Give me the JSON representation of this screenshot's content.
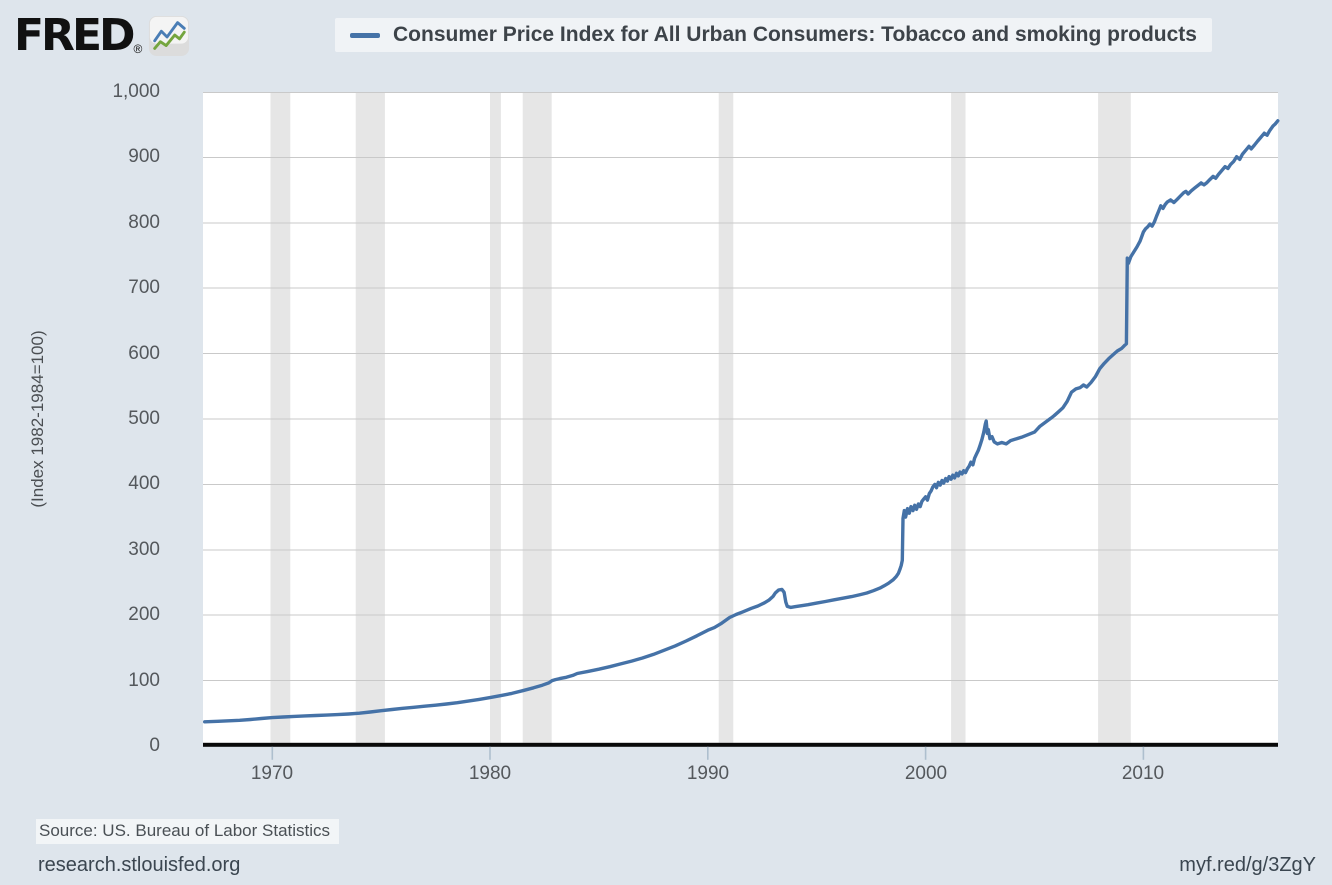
{
  "header": {
    "logo_text": "FRED",
    "registered": "®"
  },
  "footer": {
    "source": "Source: US. Bureau of Labor Statistics",
    "site_link": "research.stlouisfed.org",
    "short_link": "myf.red/g/3ZgY"
  },
  "chart_data": {
    "type": "line",
    "title": "Consumer Price Index for All Urban Consumers: Tobacco and smoking products",
    "xlabel": "",
    "ylabel": "(Index 1982-1984=100)",
    "x_domain": [
      1966.82,
      2016.18
    ],
    "y_domain": [
      0,
      1000
    ],
    "grid": true,
    "legend_position": "top-center",
    "line_color": "#4572a7",
    "recession_color": "#e6e6e6",
    "grid_color": "#c9c9c9",
    "axis_color": "#0a0a0a",
    "tick_mark_color": "#aebfce",
    "x_ticks": [
      {
        "label": "1970",
        "value": 1970
      },
      {
        "label": "1980",
        "value": 1980
      },
      {
        "label": "1990",
        "value": 1990
      },
      {
        "label": "2000",
        "value": 2000
      },
      {
        "label": "2010",
        "value": 2010
      }
    ],
    "y_ticks": [
      {
        "label": "0",
        "value": 0
      },
      {
        "label": "100",
        "value": 100
      },
      {
        "label": "200",
        "value": 200
      },
      {
        "label": "300",
        "value": 300
      },
      {
        "label": "400",
        "value": 400
      },
      {
        "label": "500",
        "value": 500
      },
      {
        "label": "600",
        "value": 600
      },
      {
        "label": "700",
        "value": 700
      },
      {
        "label": "800",
        "value": 800
      },
      {
        "label": "900",
        "value": 900
      },
      {
        "label": "1,000",
        "value": 1000
      }
    ],
    "recessions": [
      [
        1969.92,
        1970.83
      ],
      [
        1973.83,
        1975.17
      ],
      [
        1980.0,
        1980.5
      ],
      [
        1981.5,
        1982.83
      ],
      [
        1990.5,
        1991.17
      ],
      [
        2001.17,
        2001.83
      ],
      [
        2007.92,
        2009.42
      ]
    ],
    "series_name": "Consumer Price Index for All Urban Consumers: Tobacco and smoking products",
    "series": [
      [
        1966.9,
        37
      ],
      [
        1967.2,
        37.3
      ],
      [
        1967.5,
        37.8
      ],
      [
        1968,
        38.6
      ],
      [
        1968.5,
        39.3
      ],
      [
        1969,
        40.5
      ],
      [
        1969.5,
        42
      ],
      [
        1970,
        43.5
      ],
      [
        1970.5,
        44.3
      ],
      [
        1971,
        45.2
      ],
      [
        1971.5,
        46
      ],
      [
        1972,
        46.6
      ],
      [
        1972.5,
        47.2
      ],
      [
        1973,
        48
      ],
      [
        1973.5,
        49
      ],
      [
        1974,
        50.2
      ],
      [
        1974.5,
        52
      ],
      [
        1975,
        54
      ],
      [
        1975.5,
        55.8
      ],
      [
        1976,
        57.6
      ],
      [
        1976.5,
        59.2
      ],
      [
        1977,
        60.8
      ],
      [
        1977.5,
        62.4
      ],
      [
        1978,
        64.2
      ],
      [
        1978.5,
        66.2
      ],
      [
        1979,
        68.6
      ],
      [
        1979.5,
        71.2
      ],
      [
        1980,
        74
      ],
      [
        1980.5,
        77
      ],
      [
        1981,
        80.5
      ],
      [
        1981.5,
        84.5
      ],
      [
        1982,
        89
      ],
      [
        1982.4,
        93
      ],
      [
        1982.7,
        96.5
      ],
      [
        1982.85,
        100
      ],
      [
        1983,
        101.5
      ],
      [
        1983.2,
        103
      ],
      [
        1983.5,
        105
      ],
      [
        1983.8,
        108
      ],
      [
        1984,
        110.8
      ],
      [
        1984.5,
        114
      ],
      [
        1985,
        117.5
      ],
      [
        1985.5,
        121.3
      ],
      [
        1986,
        125.5
      ],
      [
        1986.5,
        129.8
      ],
      [
        1987,
        134.5
      ],
      [
        1987.5,
        140
      ],
      [
        1988,
        146.5
      ],
      [
        1988.5,
        153
      ],
      [
        1989,
        160.5
      ],
      [
        1989.5,
        168.5
      ],
      [
        1990,
        177
      ],
      [
        1990.3,
        181
      ],
      [
        1990.6,
        187
      ],
      [
        1991,
        196.5
      ],
      [
        1991.3,
        201
      ],
      [
        1991.6,
        205
      ],
      [
        1992,
        210.5
      ],
      [
        1992.3,
        214
      ],
      [
        1992.6,
        219
      ],
      [
        1992.8,
        223
      ],
      [
        1993,
        229
      ],
      [
        1993.1,
        234
      ],
      [
        1993.25,
        238.5
      ],
      [
        1993.4,
        239.5
      ],
      [
        1993.5,
        235
      ],
      [
        1993.58,
        220
      ],
      [
        1993.65,
        213.5
      ],
      [
        1993.8,
        212
      ],
      [
        1994,
        213
      ],
      [
        1994.3,
        214.5
      ],
      [
        1994.6,
        216
      ],
      [
        1995,
        218.5
      ],
      [
        1995.4,
        221
      ],
      [
        1995.8,
        223.5
      ],
      [
        1996.2,
        226
      ],
      [
        1996.6,
        228.5
      ],
      [
        1997,
        231.5
      ],
      [
        1997.3,
        234
      ],
      [
        1997.6,
        237.5
      ],
      [
        1997.9,
        241.5
      ],
      [
        1998.1,
        245
      ],
      [
        1998.3,
        249
      ],
      [
        1998.5,
        254
      ],
      [
        1998.65,
        259
      ],
      [
        1998.75,
        264
      ],
      [
        1998.82,
        270
      ],
      [
        1998.88,
        276
      ],
      [
        1998.93,
        284
      ],
      [
        1998.96,
        348
      ],
      [
        1999.02,
        360
      ],
      [
        1999.08,
        350
      ],
      [
        1999.17,
        363
      ],
      [
        1999.25,
        356
      ],
      [
        1999.33,
        366
      ],
      [
        1999.42,
        360
      ],
      [
        1999.5,
        368
      ],
      [
        1999.58,
        362
      ],
      [
        1999.67,
        370
      ],
      [
        1999.75,
        366
      ],
      [
        1999.83,
        374
      ],
      [
        1999.92,
        378
      ],
      [
        2000,
        381
      ],
      [
        2000.08,
        376
      ],
      [
        2000.17,
        386
      ],
      [
        2000.25,
        390
      ],
      [
        2000.33,
        396
      ],
      [
        2000.42,
        400
      ],
      [
        2000.5,
        395
      ],
      [
        2000.58,
        403
      ],
      [
        2000.67,
        399
      ],
      [
        2000.75,
        406
      ],
      [
        2000.83,
        402
      ],
      [
        2000.92,
        409
      ],
      [
        2001,
        405
      ],
      [
        2001.08,
        412
      ],
      [
        2001.17,
        408
      ],
      [
        2001.25,
        414
      ],
      [
        2001.33,
        410
      ],
      [
        2001.42,
        417
      ],
      [
        2001.5,
        413
      ],
      [
        2001.58,
        419
      ],
      [
        2001.67,
        416
      ],
      [
        2001.75,
        421
      ],
      [
        2001.83,
        418
      ],
      [
        2001.92,
        424
      ],
      [
        2002,
        428
      ],
      [
        2002.08,
        434
      ],
      [
        2002.17,
        430
      ],
      [
        2002.25,
        440
      ],
      [
        2002.33,
        446
      ],
      [
        2002.42,
        452
      ],
      [
        2002.5,
        460
      ],
      [
        2002.58,
        468
      ],
      [
        2002.67,
        480
      ],
      [
        2002.74,
        492
      ],
      [
        2002.78,
        497
      ],
      [
        2002.83,
        478
      ],
      [
        2002.88,
        484
      ],
      [
        2002.95,
        470
      ],
      [
        2003.05,
        473
      ],
      [
        2003.15,
        465
      ],
      [
        2003.3,
        462
      ],
      [
        2003.5,
        464
      ],
      [
        2003.7,
        462
      ],
      [
        2003.9,
        467
      ],
      [
        2004.1,
        469
      ],
      [
        2004.4,
        472
      ],
      [
        2004.7,
        476
      ],
      [
        2005,
        480
      ],
      [
        2005.25,
        489
      ],
      [
        2005.5,
        495
      ],
      [
        2005.75,
        501
      ],
      [
        2005.9,
        505
      ],
      [
        2006.1,
        511
      ],
      [
        2006.3,
        517
      ],
      [
        2006.5,
        527
      ],
      [
        2006.7,
        541
      ],
      [
        2006.9,
        546
      ],
      [
        2007.1,
        548
      ],
      [
        2007.25,
        552
      ],
      [
        2007.4,
        549
      ],
      [
        2007.6,
        556
      ],
      [
        2007.8,
        565
      ],
      [
        2008,
        577
      ],
      [
        2008.2,
        585
      ],
      [
        2008.4,
        592
      ],
      [
        2008.6,
        598
      ],
      [
        2008.8,
        604
      ],
      [
        2009,
        608
      ],
      [
        2009.12,
        612
      ],
      [
        2009.22,
        615
      ],
      [
        2009.26,
        746
      ],
      [
        2009.31,
        738
      ],
      [
        2009.42,
        748
      ],
      [
        2009.55,
        755
      ],
      [
        2009.7,
        763
      ],
      [
        2009.85,
        772
      ],
      [
        2010,
        786
      ],
      [
        2010.1,
        791
      ],
      [
        2010.2,
        794
      ],
      [
        2010.3,
        798
      ],
      [
        2010.4,
        795
      ],
      [
        2010.5,
        801
      ],
      [
        2010.6,
        810
      ],
      [
        2010.7,
        818
      ],
      [
        2010.8,
        826
      ],
      [
        2010.9,
        822
      ],
      [
        2011,
        828
      ],
      [
        2011.1,
        832
      ],
      [
        2011.25,
        835
      ],
      [
        2011.4,
        831
      ],
      [
        2011.55,
        836
      ],
      [
        2011.7,
        841
      ],
      [
        2011.85,
        846
      ],
      [
        2011.95,
        848
      ],
      [
        2012.05,
        844
      ],
      [
        2012.2,
        849
      ],
      [
        2012.35,
        853
      ],
      [
        2012.5,
        857
      ],
      [
        2012.65,
        861
      ],
      [
        2012.78,
        858
      ],
      [
        2012.9,
        861
      ],
      [
        2013.05,
        866
      ],
      [
        2013.2,
        871
      ],
      [
        2013.32,
        868
      ],
      [
        2013.45,
        874
      ],
      [
        2013.6,
        880
      ],
      [
        2013.75,
        886
      ],
      [
        2013.88,
        883
      ],
      [
        2014,
        889
      ],
      [
        2014.15,
        894
      ],
      [
        2014.28,
        901
      ],
      [
        2014.42,
        897
      ],
      [
        2014.55,
        905
      ],
      [
        2014.7,
        911
      ],
      [
        2014.85,
        917
      ],
      [
        2014.95,
        913
      ],
      [
        2015.1,
        919
      ],
      [
        2015.25,
        925
      ],
      [
        2015.4,
        931
      ],
      [
        2015.55,
        937
      ],
      [
        2015.68,
        934
      ],
      [
        2015.8,
        941
      ],
      [
        2015.95,
        948
      ],
      [
        2016.05,
        951
      ],
      [
        2016.17,
        956
      ]
    ]
  }
}
